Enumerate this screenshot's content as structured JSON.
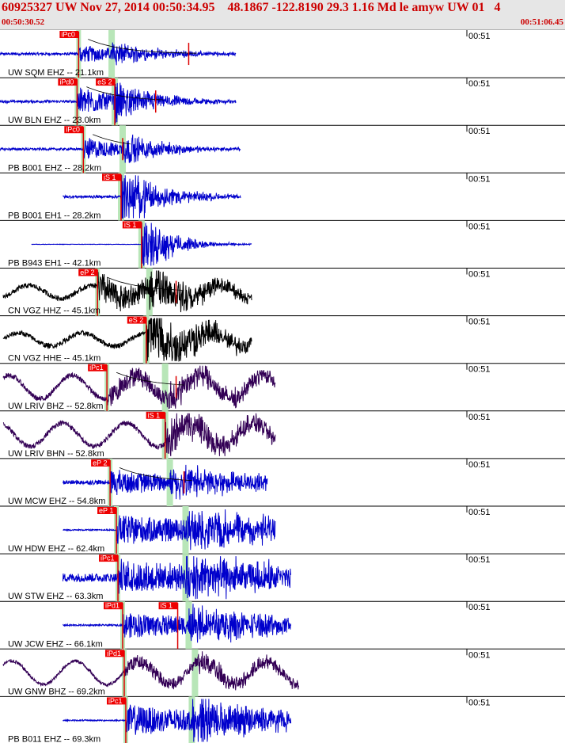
{
  "header": {
    "title": "60925327 UW Nov 27, 2014 00:50:34.95    48.1867 -122.8190 29.3 1.16 Md le amyw UW 01   4",
    "start_time": "00:50:30.52",
    "end_time": "00:51:06.45"
  },
  "chart_data": {
    "type": "line",
    "title": "60925327 UW Nov 27, 2014 00:50:34.95",
    "x_range_seconds": [
      0,
      35.93
    ],
    "time_tick_label": "00:51",
    "traces": [
      {
        "label": "UW SQM EHZ -- 21.1km",
        "net": "UW",
        "sta": "SQM",
        "chan": "EHZ",
        "dist_km": 21.1,
        "color": "#0000cc",
        "picks": [
          {
            "label": "iPc0",
            "t": 5.0
          },
          {
            "label": "-",
            "t": 12.0
          }
        ],
        "noise": 0.06,
        "amp": 0.42,
        "decay": 0.28,
        "period": 0.25,
        "lowfreq": 0,
        "s_time": 7.1,
        "end_t": 15.0,
        "coda_t": 12.0
      },
      {
        "label": "UW BLN EHZ -- 23.0km",
        "net": "UW",
        "sta": "BLN",
        "chan": "EHZ",
        "dist_km": 23.0,
        "color": "#0000cc",
        "picks": [
          {
            "label": "iPd0",
            "t": 4.9
          },
          {
            "label": "eS 2",
            "t": 7.3
          }
        ],
        "noise": 0.06,
        "amp": 0.7,
        "decay": 0.3,
        "period": 0.25,
        "lowfreq": 0,
        "s_time": 7.3,
        "end_t": 15.0,
        "coda_t": 9.9
      },
      {
        "label": "PB B001 EHZ -- 28.2km",
        "net": "PB",
        "sta": "B001",
        "chan": "EHZ",
        "dist_km": 28.2,
        "color": "#0000cc",
        "picks": [
          {
            "label": "iPc0",
            "t": 5.3
          }
        ],
        "noise": 0.05,
        "amp": 0.55,
        "decay": 0.3,
        "period": 0.3,
        "lowfreq": 0,
        "s_time": 7.8,
        "end_t": 15.3,
        "coda_t": 7.8
      },
      {
        "label": "PB B001 EH1 -- 28.2km",
        "net": "PB",
        "sta": "B001",
        "chan": "EH1",
        "dist_km": 28.2,
        "color": "#0000cc",
        "picks": [
          {
            "label": "iS 1",
            "t": 7.7
          }
        ],
        "noise": 0.06,
        "amp": 0.85,
        "decay": 0.35,
        "period": 0.25,
        "lowfreq": 0,
        "s_time": 7.7,
        "end_t": 15.3,
        "coda_t": 0
      },
      {
        "label": "PB B943 EH1 -- 42.1km",
        "net": "PB",
        "sta": "B943",
        "chan": "EH1",
        "dist_km": 42.1,
        "color": "#0000cc",
        "picks": [
          {
            "label": "iS 1",
            "t": 9.0
          }
        ],
        "noise": 0.01,
        "amp": 0.9,
        "decay": 0.5,
        "period": 0.3,
        "lowfreq": 0,
        "s_time": 9.0,
        "end_t": 16.0,
        "coda_t": 0
      },
      {
        "label": "CN VGZ HHZ -- 45.1km",
        "net": "CN",
        "sta": "VGZ",
        "chan": "HHZ",
        "dist_km": 45.1,
        "color": "#000000",
        "picks": [
          {
            "label": "eP 2",
            "t": 6.2
          }
        ],
        "noise": 0.12,
        "amp": 0.75,
        "decay": 0.2,
        "period": 0.15,
        "lowfreq": 0.3,
        "s_time": 9.5,
        "end_t": 16.0,
        "coda_t": 11.2
      },
      {
        "label": "CN VGZ HHE -- 45.1km",
        "net": "CN",
        "sta": "VGZ",
        "chan": "HHE",
        "dist_km": 45.1,
        "color": "#000000",
        "picks": [
          {
            "label": "eS 2",
            "t": 9.3
          }
        ],
        "noise": 0.12,
        "amp": 0.85,
        "decay": 0.2,
        "period": 0.15,
        "lowfreq": 0.3,
        "s_time": 9.3,
        "end_t": 16.0,
        "coda_t": 0
      },
      {
        "label": "UW LRIV BHZ -- 52.8km",
        "net": "UW",
        "sta": "LRIV",
        "chan": "BHZ",
        "dist_km": 52.8,
        "color": "#330055",
        "picks": [
          {
            "label": "iPc1",
            "t": 6.8
          }
        ],
        "noise": 0.12,
        "amp": 0.5,
        "decay": 0.12,
        "period": 0.2,
        "lowfreq": 0.55,
        "s_time": 10.5,
        "end_t": 17.5,
        "coda_t": 11.2
      },
      {
        "label": "UW LRIV BHN -- 52.8km",
        "net": "UW",
        "sta": "LRIV",
        "chan": "BHN",
        "dist_km": 52.8,
        "color": "#330055",
        "picks": [
          {
            "label": "iS 1",
            "t": 10.5
          }
        ],
        "noise": 0.12,
        "amp": 0.5,
        "decay": 0.12,
        "period": 0.2,
        "lowfreq": 0.55,
        "s_time": 10.5,
        "end_t": 17.5,
        "coda_t": 0
      },
      {
        "label": "UW MCW EHZ -- 54.8km",
        "net": "UW",
        "sta": "MCW",
        "chan": "EHZ",
        "dist_km": 54.8,
        "color": "#0000cc",
        "picks": [
          {
            "label": "eP 2",
            "t": 7.0
          }
        ],
        "noise": 0.1,
        "amp": 0.55,
        "decay": 0.12,
        "period": 0.2,
        "lowfreq": 0,
        "s_time": 10.8,
        "end_t": 17.0,
        "coda_t": 11.7
      },
      {
        "label": "UW HDW EHZ -- 62.4km",
        "net": "UW",
        "sta": "HDW",
        "chan": "EHZ",
        "dist_km": 62.4,
        "color": "#0000cc",
        "picks": [
          {
            "label": "eP 1",
            "t": 7.4
          }
        ],
        "noise": 0.03,
        "amp": 0.7,
        "decay": 0.08,
        "period": 0.2,
        "lowfreq": 0,
        "s_time": 11.8,
        "end_t": 17.5,
        "coda_t": 0
      },
      {
        "label": "UW STW EHZ -- 63.3km",
        "net": "UW",
        "sta": "STW",
        "chan": "EHZ",
        "dist_km": 63.3,
        "color": "#0000cc",
        "picks": [
          {
            "label": "iPc1",
            "t": 7.5
          }
        ],
        "noise": 0.2,
        "amp": 0.75,
        "decay": 0.1,
        "period": 0.18,
        "lowfreq": 0,
        "s_time": 11.8,
        "end_t": 18.5,
        "coda_t": 0
      },
      {
        "label": "UW JCW EHZ -- 66.1km",
        "net": "UW",
        "sta": "JCW",
        "chan": "EHZ",
        "dist_km": 66.1,
        "color": "#0000cc",
        "picks": [
          {
            "label": "iPd1",
            "t": 7.8
          },
          {
            "label": "iS 1",
            "t": 11.3
          }
        ],
        "noise": 0.04,
        "amp": 0.6,
        "decay": 0.1,
        "period": 0.2,
        "lowfreq": 0,
        "s_time": 12.0,
        "end_t": 18.5,
        "coda_t": 0
      },
      {
        "label": "UW GNW BHZ -- 69.2km",
        "net": "UW",
        "sta": "GNW",
        "chan": "BHZ",
        "dist_km": 69.2,
        "color": "#330055",
        "picks": [
          {
            "label": "iPd1",
            "t": 7.9
          }
        ],
        "noise": 0.08,
        "amp": 0.35,
        "decay": 0.1,
        "period": 0.2,
        "lowfreq": 0.55,
        "s_time": 12.4,
        "end_t": 19.0,
        "coda_t": 0
      },
      {
        "label": "PB B011 EHZ -- 69.3km",
        "net": "PB",
        "sta": "B011",
        "chan": "EHZ",
        "dist_km": 69.3,
        "color": "#0000cc",
        "picks": [
          {
            "label": "iPc1",
            "t": 8.0
          }
        ],
        "noise": 0.03,
        "amp": 0.75,
        "decay": 0.12,
        "period": 0.2,
        "lowfreq": 0,
        "s_time": 12.2,
        "end_t": 18.5,
        "coda_t": 0
      }
    ]
  }
}
